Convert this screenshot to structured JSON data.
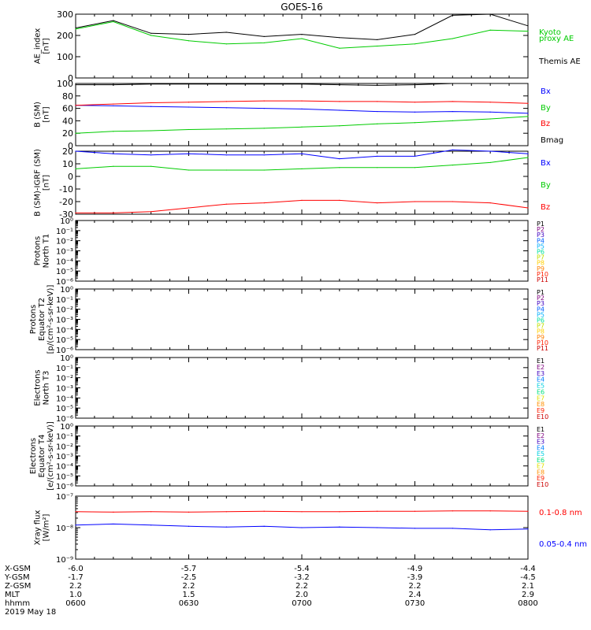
{
  "title": "GOES-16",
  "chart_data": [
    {
      "type": "line",
      "ylabel": "AE_index\n[nT]",
      "ylim": [
        0,
        300
      ],
      "yscale": "linear",
      "yticks": [
        0,
        100,
        200,
        300
      ],
      "x": [
        "0600",
        "0610",
        "0620",
        "0630",
        "0640",
        "0650",
        "0700",
        "0710",
        "0720",
        "0730",
        "0740",
        "0750",
        "0800"
      ],
      "series": [
        {
          "name": "Themis AE",
          "color": "#000000",
          "values": [
            235,
            270,
            210,
            205,
            215,
            195,
            205,
            190,
            180,
            205,
            295,
            300,
            245
          ]
        },
        {
          "name": "Kyoto proxy AE",
          "color": "#00cc00",
          "values": [
            230,
            265,
            200,
            175,
            160,
            165,
            185,
            140,
            150,
            160,
            185,
            225,
            220
          ]
        }
      ],
      "legend": [
        {
          "text": "Kyoto",
          "color": "#00cc00"
        },
        {
          "text": "proxy AE",
          "color": "#00cc00"
        },
        {
          "text": "Themis AE",
          "color": "#000000"
        }
      ]
    },
    {
      "type": "line",
      "ylabel": "B (SM)\n[nT]",
      "ylim": [
        0,
        100
      ],
      "yscale": "linear",
      "yticks": [
        0,
        20,
        40,
        60,
        80,
        100
      ],
      "x": [
        "0600",
        "0610",
        "0620",
        "0630",
        "0640",
        "0650",
        "0700",
        "0710",
        "0720",
        "0730",
        "0740",
        "0750",
        "0800"
      ],
      "series": [
        {
          "name": "Bx",
          "color": "#0000ff",
          "values": [
            65,
            64,
            63,
            62,
            61,
            60,
            59,
            57,
            55,
            54,
            55,
            54,
            52
          ]
        },
        {
          "name": "By",
          "color": "#00cc00",
          "values": [
            20,
            23,
            24,
            26,
            27,
            28,
            30,
            32,
            35,
            37,
            40,
            43,
            47
          ]
        },
        {
          "name": "Bz",
          "color": "#ff0000",
          "values": [
            65,
            67,
            69,
            70,
            71,
            72,
            72,
            71,
            71,
            70,
            71,
            70,
            68
          ]
        },
        {
          "name": "Bmag",
          "color": "#000000",
          "values": [
            98,
            98,
            99,
            99,
            99,
            99,
            99,
            98,
            97,
            98,
            100,
            100,
            100
          ]
        }
      ],
      "legend": [
        {
          "text": "Bx",
          "color": "#0000ff"
        },
        {
          "text": "By",
          "color": "#00cc00"
        },
        {
          "text": "Bz",
          "color": "#ff0000"
        },
        {
          "text": "Bmag",
          "color": "#000000"
        }
      ]
    },
    {
      "type": "line",
      "ylabel": "B (SM)-IGRF (SM)\n[nT]",
      "ylim": [
        -30,
        20
      ],
      "yscale": "linear",
      "yticks": [
        -30,
        -20,
        -10,
        0,
        10,
        20
      ],
      "x": [
        "0600",
        "0610",
        "0620",
        "0630",
        "0640",
        "0650",
        "0700",
        "0710",
        "0720",
        "0730",
        "0740",
        "0750",
        "0800"
      ],
      "series": [
        {
          "name": "Bx",
          "color": "#0000ff",
          "values": [
            20,
            18,
            17,
            18,
            17,
            17,
            18,
            14,
            16,
            16,
            21,
            20,
            18
          ]
        },
        {
          "name": "By",
          "color": "#00cc00",
          "values": [
            6,
            8,
            8,
            5,
            5,
            5,
            6,
            7,
            7,
            7,
            9,
            11,
            15
          ]
        },
        {
          "name": "Bz",
          "color": "#ff0000",
          "values": [
            -29,
            -29,
            -28,
            -25,
            -22,
            -21,
            -19,
            -19,
            -21,
            -20,
            -20,
            -21,
            -25
          ]
        }
      ],
      "legend": [
        {
          "text": "Bx",
          "color": "#0000ff"
        },
        {
          "text": "By",
          "color": "#00cc00"
        },
        {
          "text": "Bz",
          "color": "#ff0000"
        }
      ]
    },
    {
      "type": "line",
      "ylabel": "Protons\nNorth T1",
      "yscale": "log",
      "ylim_exp": [
        -6,
        0
      ],
      "ytick_exps": [
        -6,
        -5,
        -4,
        -3,
        -2,
        -1,
        0
      ],
      "series": [],
      "legend": [
        {
          "text": "P1",
          "color": "#000000"
        },
        {
          "text": "P2",
          "color": "#7f007f"
        },
        {
          "text": "P3",
          "color": "#3f00bf"
        },
        {
          "text": "P4",
          "color": "#0060ff"
        },
        {
          "text": "P5",
          "color": "#00b0ff"
        },
        {
          "text": "P6",
          "color": "#00e0a0"
        },
        {
          "text": "P7",
          "color": "#c0e000"
        },
        {
          "text": "P8",
          "color": "#ffd000"
        },
        {
          "text": "P9",
          "color": "#ff8000"
        },
        {
          "text": "P10",
          "color": "#ff2000"
        },
        {
          "text": "P11",
          "color": "#cc0000"
        }
      ]
    },
    {
      "type": "line",
      "ylabel": "Protons\nEquator T2\n[p/(cm²-s-sr-keV)]",
      "yscale": "log",
      "ylim_exp": [
        -6,
        0
      ],
      "ytick_exps": [
        -6,
        -5,
        -4,
        -3,
        -2,
        -1,
        0
      ],
      "series": [],
      "legend": [
        {
          "text": "P1",
          "color": "#000000"
        },
        {
          "text": "P2",
          "color": "#7f007f"
        },
        {
          "text": "P3",
          "color": "#3f00bf"
        },
        {
          "text": "P4",
          "color": "#0060ff"
        },
        {
          "text": "P5",
          "color": "#00b0ff"
        },
        {
          "text": "P6",
          "color": "#00e0a0"
        },
        {
          "text": "P7",
          "color": "#c0e000"
        },
        {
          "text": "P8",
          "color": "#ffd000"
        },
        {
          "text": "P9",
          "color": "#ff8000"
        },
        {
          "text": "P10",
          "color": "#ff2000"
        },
        {
          "text": "P11",
          "color": "#cc0000"
        }
      ]
    },
    {
      "type": "line",
      "ylabel": "Electrons\nNorth T3",
      "yscale": "log",
      "ylim_exp": [
        -6,
        0
      ],
      "ytick_exps": [
        -6,
        -5,
        -4,
        -3,
        -2,
        -1,
        0
      ],
      "series": [],
      "legend": [
        {
          "text": "E1",
          "color": "#000000"
        },
        {
          "text": "E2",
          "color": "#7f007f"
        },
        {
          "text": "E3",
          "color": "#3f00bf"
        },
        {
          "text": "E4",
          "color": "#0080ff"
        },
        {
          "text": "E5",
          "color": "#00d0e0"
        },
        {
          "text": "E6",
          "color": "#00e080"
        },
        {
          "text": "E7",
          "color": "#e0e000"
        },
        {
          "text": "E8",
          "color": "#ff9000"
        },
        {
          "text": "E9",
          "color": "#ff2000"
        },
        {
          "text": "E10",
          "color": "#cc0000"
        }
      ]
    },
    {
      "type": "line",
      "ylabel": "Electrons\nEquator T4\n[e/(cm²-s-sr-keV)]",
      "yscale": "log",
      "ylim_exp": [
        -6,
        0
      ],
      "ytick_exps": [
        -6,
        -5,
        -4,
        -3,
        -2,
        -1,
        0
      ],
      "series": [],
      "legend": [
        {
          "text": "E1",
          "color": "#000000"
        },
        {
          "text": "E2",
          "color": "#7f007f"
        },
        {
          "text": "E3",
          "color": "#3f00bf"
        },
        {
          "text": "E4",
          "color": "#0080ff"
        },
        {
          "text": "E5",
          "color": "#00d0e0"
        },
        {
          "text": "E6",
          "color": "#00e080"
        },
        {
          "text": "E7",
          "color": "#e0e000"
        },
        {
          "text": "E8",
          "color": "#ff9000"
        },
        {
          "text": "E9",
          "color": "#ff2000"
        },
        {
          "text": "E10",
          "color": "#cc0000"
        }
      ]
    },
    {
      "type": "line",
      "ylabel": "Xray flux\n[W/m²]",
      "yscale": "log",
      "ylim_exp": [
        -9,
        -7
      ],
      "ytick_exps": [
        -9,
        -8,
        -7
      ],
      "x": [
        "0600",
        "0610",
        "0620",
        "0630",
        "0640",
        "0650",
        "0700",
        "0710",
        "0720",
        "0730",
        "0740",
        "0750",
        "0800"
      ],
      "series": [
        {
          "name": "0.1-0.8 nm",
          "color": "#ff0000",
          "values": [
            3.2e-08,
            3.1e-08,
            3.2e-08,
            3.1e-08,
            3.2e-08,
            3.3e-08,
            3.2e-08,
            3.2e-08,
            3.3e-08,
            3.3e-08,
            3.4e-08,
            3.4e-08,
            3.3e-08
          ]
        },
        {
          "name": "0.05-0.4 nm",
          "color": "#0000ff",
          "values": [
            1.2e-08,
            1.3e-08,
            1.2e-08,
            1.1e-08,
            1.05e-08,
            1.1e-08,
            1e-08,
            1.05e-08,
            1e-08,
            9.5e-09,
            9.5e-09,
            8.5e-09,
            9e-09
          ]
        }
      ],
      "legend": [
        {
          "text": "0.1-0.8 nm",
          "color": "#ff0000"
        },
        {
          "text": "0.05-0.4 nm",
          "color": "#0000ff"
        }
      ]
    }
  ],
  "x_axis": {
    "labels": [
      "X-GSM",
      "Y-GSM",
      "Z-GSM",
      "MLT",
      "hhmm"
    ],
    "columns": [
      [
        "-6.0",
        "-1.7",
        "2.2",
        "1.0",
        "0600"
      ],
      [
        "-5.7",
        "-2.5",
        "2.2",
        "1.5",
        "0630"
      ],
      [
        "-5.4",
        "-3.2",
        "2.2",
        "2.0",
        "0700"
      ],
      [
        "-4.9",
        "-3.9",
        "2.2",
        "2.4",
        "0730"
      ],
      [
        "-4.4",
        "-4.5",
        "2.1",
        "2.9",
        "0800"
      ]
    ],
    "date": "2019 May 18"
  }
}
